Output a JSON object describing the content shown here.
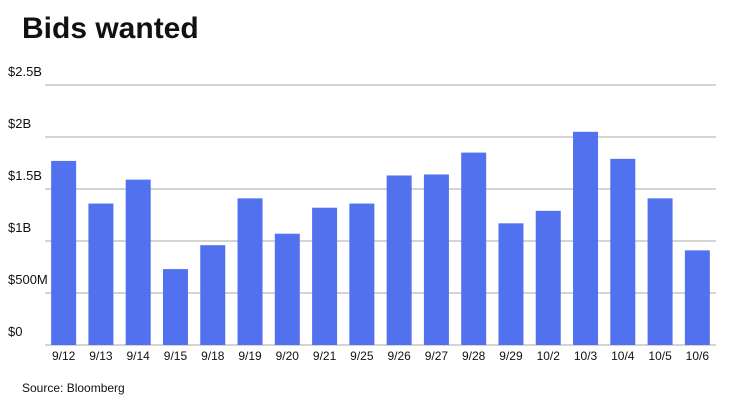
{
  "chart_data": {
    "type": "bar",
    "title": "Bids wanted",
    "source": "Source: Bloomberg",
    "categories": [
      "9/12",
      "9/13",
      "9/14",
      "9/15",
      "9/18",
      "9/19",
      "9/20",
      "9/21",
      "9/25",
      "9/26",
      "9/27",
      "9/28",
      "9/29",
      "10/2",
      "10/3",
      "10/4",
      "10/5",
      "10/6"
    ],
    "values": [
      1770000000,
      1360000000,
      1590000000,
      730000000,
      960000000,
      1410000000,
      1070000000,
      1320000000,
      1360000000,
      1630000000,
      1640000000,
      1850000000,
      1170000000,
      1290000000,
      2050000000,
      1790000000,
      1410000000,
      910000000
    ],
    "color": "#5271ee",
    "ylim": [
      0,
      2500000000
    ],
    "yticks": [
      {
        "value": 0,
        "label": "$0"
      },
      {
        "value": 500000000,
        "label": "$500M"
      },
      {
        "value": 1000000000,
        "label": "$1B"
      },
      {
        "value": 1500000000,
        "label": "$1.5B"
      },
      {
        "value": 2000000000,
        "label": "$2B"
      },
      {
        "value": 2500000000,
        "label": "$2.5B"
      }
    ],
    "grid": true
  }
}
